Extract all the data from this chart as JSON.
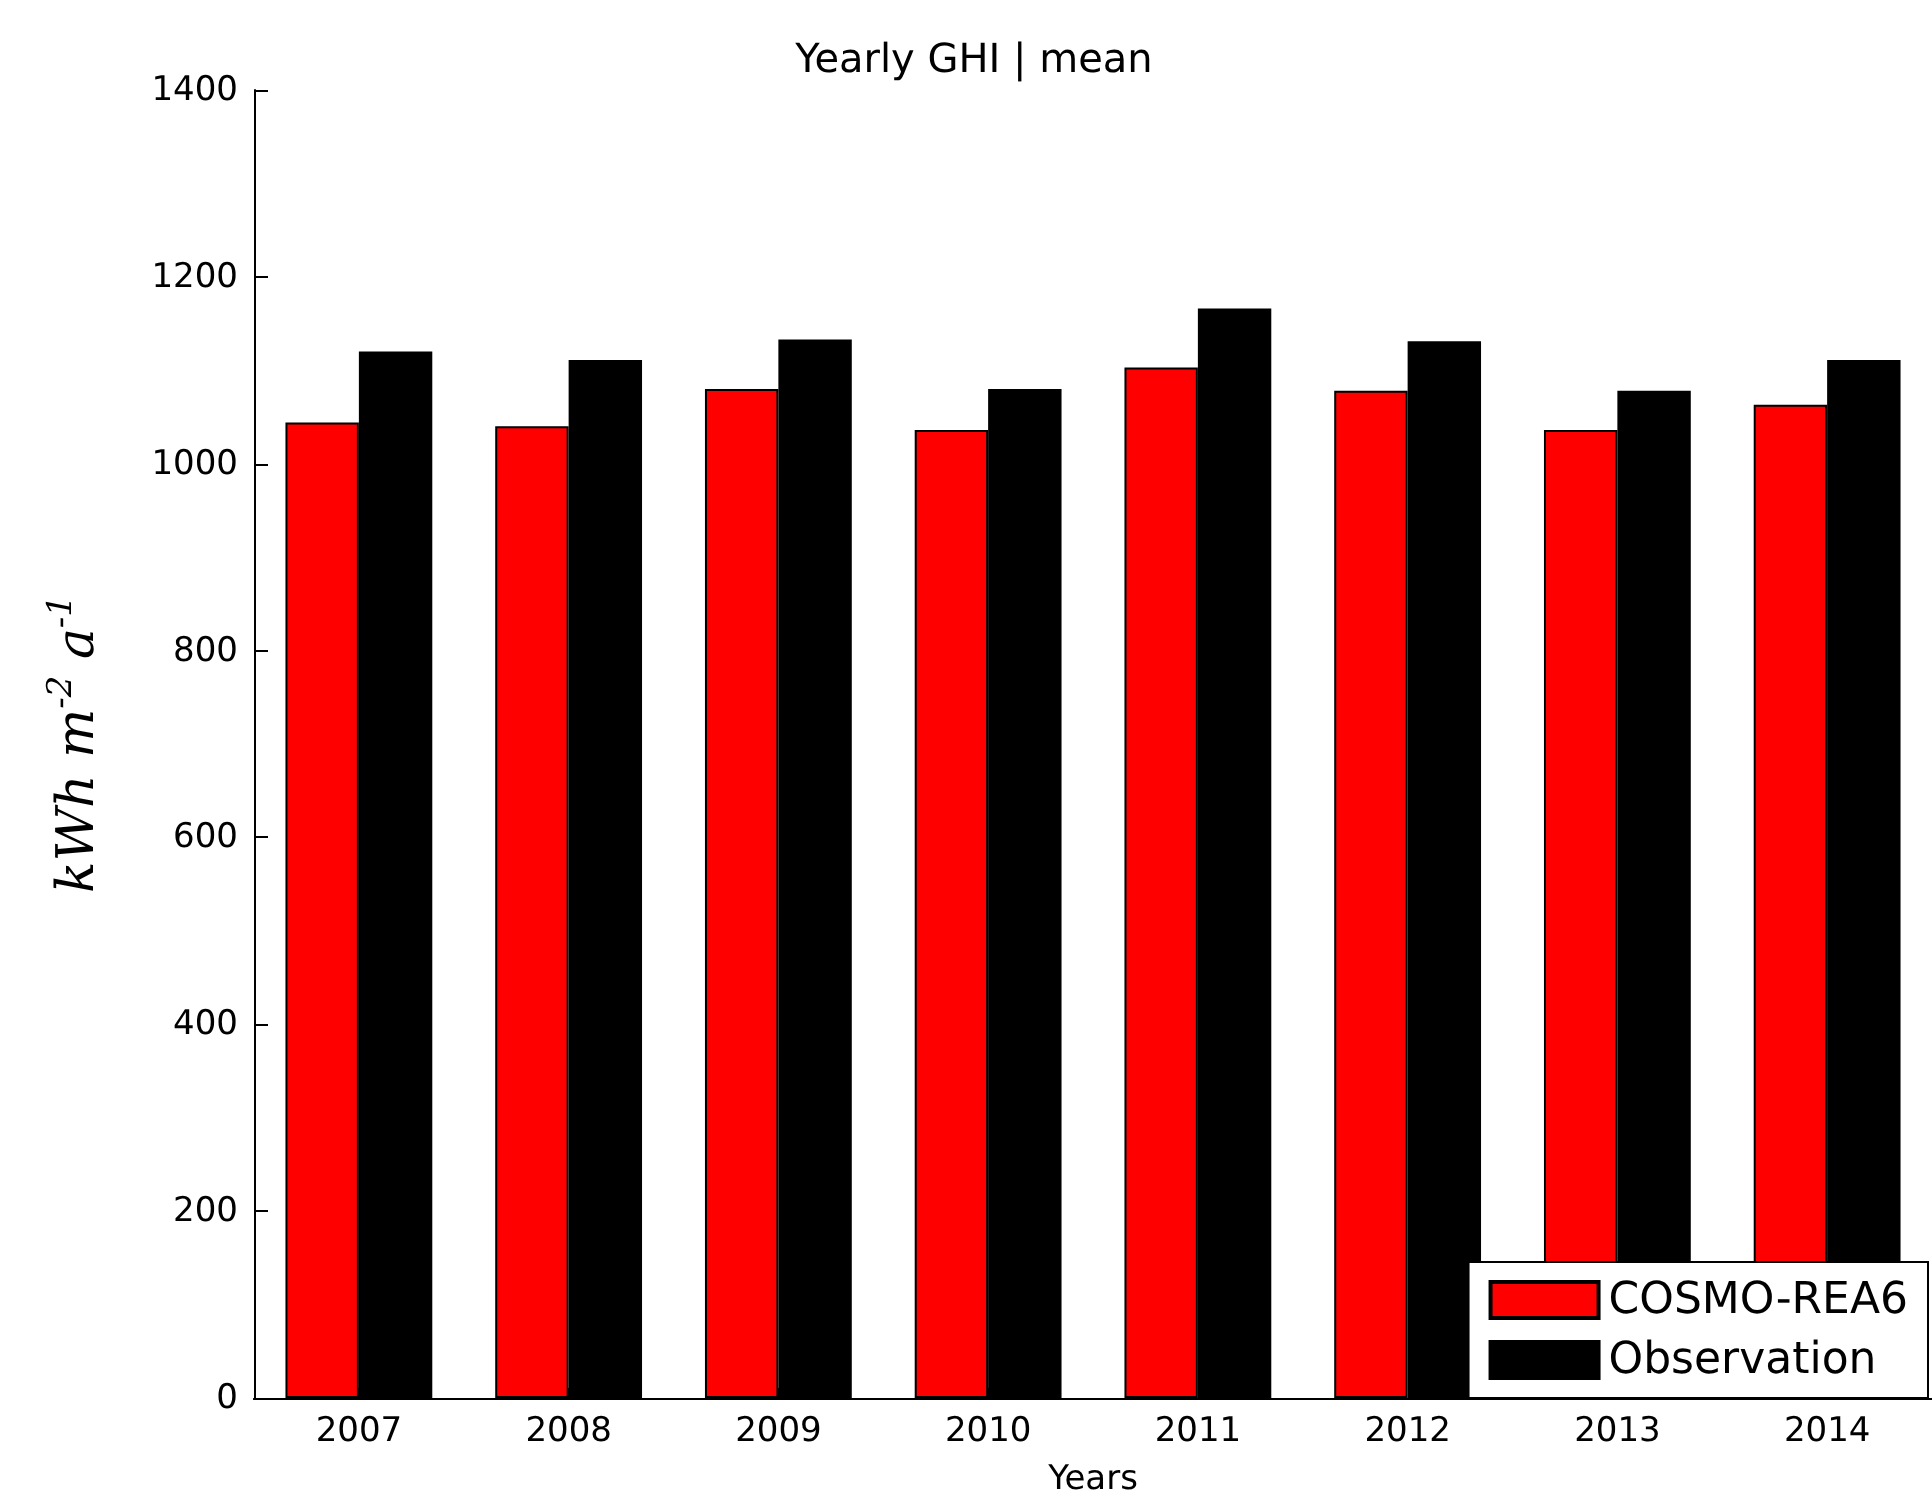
{
  "chart_data": {
    "type": "bar",
    "title": "Yearly GHI | mean",
    "xlabel": "Years",
    "ylabel": "kWh m$^{-2}$ a$^{-1}$",
    "categories": [
      "2007",
      "2008",
      "2009",
      "2010",
      "2011",
      "2012",
      "2013",
      "2014"
    ],
    "series": [
      {
        "name": "COSMO-REA6",
        "color": "#ff0000",
        "values": [
          1044,
          1040,
          1080,
          1036,
          1103,
          1078,
          1036,
          1063
        ]
      },
      {
        "name": "Observation",
        "color": "#000000",
        "values": [
          1120,
          1111,
          1133,
          1080,
          1166,
          1131,
          1078,
          1111
        ]
      }
    ],
    "ylim": [
      0,
      1400
    ],
    "yticks": [
      0,
      200,
      400,
      600,
      800,
      1000,
      1200,
      1400
    ],
    "grid": false,
    "legend": "bottom right"
  }
}
